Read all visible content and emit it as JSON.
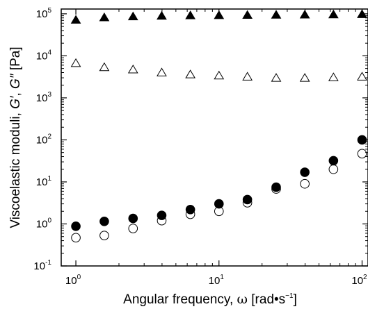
{
  "chart_data": {
    "type": "scatter",
    "title": "",
    "xlabel": "Angular frequency, ω [rad•s⁻¹]",
    "ylabel": "Viscoelastic moduli, G′, G″ [Pa]",
    "xlabel_parts": {
      "prefix": "Angular frequency, ",
      "symbol": "ω",
      "unit_open": " [rad•s",
      "unit_sup": "−1",
      "unit_close": "]"
    },
    "ylabel_parts": {
      "prefix": "Viscoelastic moduli, ",
      "g1": "G′",
      "sep": ", ",
      "g2": "G″",
      "unit": " [Pa]"
    },
    "x_scale": "log",
    "y_scale": "log",
    "xlim": [
      0.79,
      110
    ],
    "ylim": [
      0.1,
      130000
    ],
    "x_ticks": [
      {
        "base": "10",
        "exp": "0",
        "value": 1
      },
      {
        "base": "10",
        "exp": "1",
        "value": 10
      },
      {
        "base": "10",
        "exp": "2",
        "value": 100
      }
    ],
    "y_ticks": [
      {
        "base": "10",
        "exp": "-1",
        "value": 0.1
      },
      {
        "base": "10",
        "exp": "0",
        "value": 1
      },
      {
        "base": "10",
        "exp": "1",
        "value": 10
      },
      {
        "base": "10",
        "exp": "2",
        "value": 100
      },
      {
        "base": "10",
        "exp": "3",
        "value": 1000
      },
      {
        "base": "10",
        "exp": "4",
        "value": 10000
      },
      {
        "base": "10",
        "exp": "5",
        "value": 100000
      }
    ],
    "grid": false,
    "legend": "none",
    "series": [
      {
        "marker": "filled-triangle",
        "x": [
          1,
          1.58,
          2.51,
          3.98,
          6.31,
          10,
          15.8,
          25.1,
          39.8,
          63.1,
          100
        ],
        "y": [
          70000,
          80000,
          84000,
          87000,
          89000,
          90000,
          91000,
          92000,
          93000,
          94000,
          95000
        ]
      },
      {
        "marker": "open-triangle",
        "x": [
          1,
          1.58,
          2.51,
          3.98,
          6.31,
          10,
          15.8,
          25.1,
          39.8,
          63.1,
          100
        ],
        "y": [
          6500,
          5200,
          4600,
          3900,
          3500,
          3300,
          3100,
          2900,
          2900,
          3000,
          3100
        ]
      },
      {
        "marker": "filled-circle",
        "x": [
          1,
          1.58,
          2.51,
          3.98,
          6.31,
          10,
          15.8,
          25.1,
          39.8,
          63.1,
          100
        ],
        "y": [
          0.88,
          1.15,
          1.35,
          1.6,
          2.2,
          3.0,
          3.8,
          7.5,
          17,
          32,
          100
        ]
      },
      {
        "marker": "open-circle",
        "x": [
          1,
          1.58,
          2.51,
          3.98,
          6.31,
          10,
          15.8,
          25.1,
          39.8,
          63.1,
          100
        ],
        "y": [
          0.47,
          0.53,
          0.78,
          1.2,
          1.7,
          2.0,
          3.2,
          6.8,
          9.0,
          20,
          47
        ]
      }
    ]
  },
  "colors": {
    "marker": "#000000",
    "axis": "#000000",
    "background": "#ffffff"
  }
}
